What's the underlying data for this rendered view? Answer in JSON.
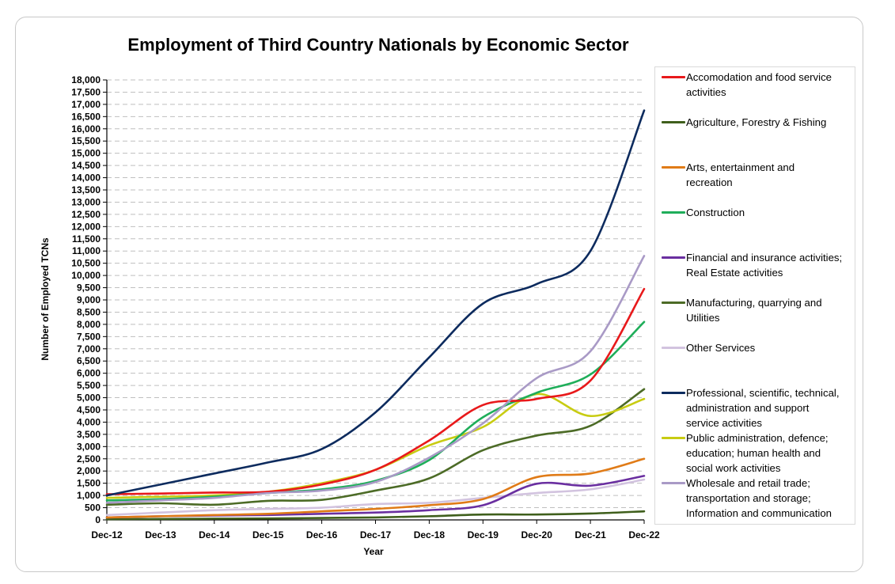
{
  "chart_data": {
    "type": "line",
    "title": "Employment of Third Country Nationals by Economic Sector",
    "xlabel": "Year",
    "ylabel": "Number of Employed TCNs",
    "categories": [
      "Dec-12",
      "Dec-13",
      "Dec-14",
      "Dec-15",
      "Dec-16",
      "Dec-17",
      "Dec-18",
      "Dec-19",
      "Dec-20",
      "Dec-21",
      "Dec-22"
    ],
    "ylim": [
      0,
      18000
    ],
    "ytick_step": 500,
    "grid": "horizontal dashed",
    "legend_position": "right",
    "series": [
      {
        "name": "Accomodation and food service activities",
        "color": "#e8191b",
        "values": [
          1050,
          1080,
          1120,
          1150,
          1450,
          2050,
          3250,
          4700,
          4950,
          5700,
          9450
        ]
      },
      {
        "name": "Agriculture, Forestry & Fishing",
        "color": "#3f5f1c",
        "values": [
          30,
          40,
          50,
          60,
          80,
          100,
          150,
          220,
          220,
          260,
          350
        ]
      },
      {
        "name": "Arts, entertainment and recreation",
        "color": "#e07b17",
        "values": [
          100,
          150,
          200,
          250,
          350,
          450,
          600,
          850,
          1750,
          1900,
          2500
        ]
      },
      {
        "name": "Construction",
        "color": "#1fae5a",
        "values": [
          800,
          850,
          950,
          1100,
          1250,
          1600,
          2450,
          4200,
          5200,
          5950,
          8100
        ]
      },
      {
        "name": "Financial and insurance activities; Real Estate activities",
        "color": "#6a2fa0",
        "values": [
          100,
          150,
          180,
          200,
          250,
          300,
          400,
          600,
          1480,
          1400,
          1800
        ]
      },
      {
        "name": "Manufacturing, quarrying and Utilities",
        "color": "#4c6b26",
        "values": [
          620,
          680,
          620,
          780,
          820,
          1200,
          1700,
          2850,
          3450,
          3850,
          5350
        ]
      },
      {
        "name": "Other Services",
        "color": "#d2c3df",
        "values": [
          200,
          300,
          400,
          450,
          500,
          650,
          700,
          900,
          1100,
          1250,
          1650
        ]
      },
      {
        "name": "Professional, scientific, technical, administration and support service activities",
        "color": "#0d2b5e",
        "values": [
          1000,
          1450,
          1900,
          2350,
          2900,
          4400,
          6650,
          8850,
          9650,
          11000,
          16750
        ]
      },
      {
        "name": "Public administration, defence; education; human health and social work activities",
        "color": "#c8cc12",
        "values": [
          900,
          950,
          1000,
          1150,
          1500,
          2050,
          3050,
          3800,
          5150,
          4250,
          4950
        ]
      },
      {
        "name": "Wholesale and retail trade; transportation and storage; Information and communication",
        "color": "#a99ac6",
        "values": [
          700,
          800,
          900,
          1100,
          1200,
          1550,
          2550,
          3950,
          5800,
          6900,
          10800
        ]
      }
    ]
  },
  "legend": {
    "items": [
      {
        "lines": [
          "Accomodation and food service",
          "activities"
        ]
      },
      {
        "lines": [
          "Agriculture, Forestry & Fishing"
        ]
      },
      {
        "lines": [
          "Arts, entertainment and",
          "recreation"
        ]
      },
      {
        "lines": [
          "Construction"
        ]
      },
      {
        "lines": [
          "Financial and insurance activities;",
          "Real Estate activities"
        ]
      },
      {
        "lines": [
          "Manufacturing, quarrying and",
          "Utilities"
        ]
      },
      {
        "lines": [
          "Other Services"
        ]
      },
      {
        "lines": [
          "Professional, scientific, technical,",
          "administration and support",
          "service activities"
        ]
      },
      {
        "lines": [
          "Public administration, defence;",
          "education; human health and",
          "social work activities"
        ]
      },
      {
        "lines": [
          "Wholesale and retail trade;",
          "transportation and storage;",
          "Information and communication"
        ]
      }
    ]
  }
}
